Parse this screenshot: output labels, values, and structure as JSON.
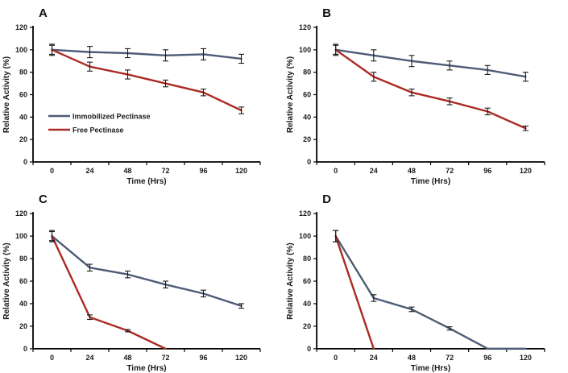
{
  "figure": {
    "background": "#ffffff",
    "axis_color": "#000000",
    "tick_label_color": "#1a1a1a",
    "error_bar_color": "#1a1a1a"
  },
  "legend": {
    "position": "inside-left-middle-of-panel-A",
    "items": [
      {
        "label": "Immobilized Pectinase",
        "color": "#4D5C76"
      },
      {
        "label": "Free Pectinase",
        "color": "#AA2B24"
      }
    ]
  },
  "chart_data": [
    {
      "type": "line",
      "panel_label": "A",
      "xlabel": "Time (Hrs)",
      "ylabel": "Relative Activity (%)",
      "categories": [
        "0",
        "24",
        "48",
        "72",
        "96",
        "120"
      ],
      "x": [
        0,
        24,
        48,
        72,
        96,
        120
      ],
      "ylim": [
        0,
        120
      ],
      "yticks": [
        0,
        20,
        40,
        60,
        80,
        100,
        120
      ],
      "grid": false,
      "show_legend": true,
      "series": [
        {
          "name": "Immobilized Pectinase",
          "color": "#4D5C76",
          "values": [
            100,
            98,
            97,
            95,
            96,
            92
          ],
          "errors": [
            5,
            5,
            4,
            5,
            5,
            4
          ]
        },
        {
          "name": "Free Pectinase",
          "color": "#AA2B24",
          "values": [
            100,
            85,
            78,
            70,
            62,
            46
          ],
          "errors": [
            4,
            4,
            4,
            3,
            3,
            3
          ]
        }
      ]
    },
    {
      "type": "line",
      "panel_label": "B",
      "xlabel": "Time (Hrs)",
      "ylabel": "Relative Activity (%)",
      "categories": [
        "0",
        "24",
        "48",
        "72",
        "96",
        "120"
      ],
      "x": [
        0,
        24,
        48,
        72,
        96,
        120
      ],
      "ylim": [
        0,
        120
      ],
      "yticks": [
        0,
        20,
        40,
        60,
        80,
        100,
        120
      ],
      "grid": false,
      "show_legend": false,
      "series": [
        {
          "name": "Immobilized Pectinase",
          "color": "#4D5C76",
          "values": [
            100,
            95,
            90,
            86,
            82,
            76
          ],
          "errors": [
            5,
            5,
            5,
            4,
            4,
            4
          ]
        },
        {
          "name": "Free Pectinase",
          "color": "#AA2B24",
          "values": [
            100,
            76,
            62,
            54,
            45,
            30
          ],
          "errors": [
            4,
            4,
            3,
            3,
            3,
            2
          ]
        }
      ]
    },
    {
      "type": "line",
      "panel_label": "C",
      "xlabel": "Time (Hrs)",
      "ylabel": "Relative Activity (%)",
      "categories": [
        "0",
        "24",
        "48",
        "72",
        "96",
        "120"
      ],
      "x": [
        0,
        24,
        48,
        72,
        96,
        120
      ],
      "ylim": [
        0,
        120
      ],
      "yticks": [
        0,
        20,
        40,
        60,
        80,
        100,
        120
      ],
      "grid": false,
      "show_legend": false,
      "series": [
        {
          "name": "Immobilized Pectinase",
          "color": "#4D5C76",
          "values": [
            100,
            72,
            66,
            57,
            49,
            38
          ],
          "errors": [
            5,
            3,
            3,
            3,
            3,
            2
          ]
        },
        {
          "name": "Free Pectinase",
          "color": "#AA2B24",
          "values": [
            100,
            28,
            16,
            0,
            null,
            null
          ],
          "errors": [
            4,
            2,
            1,
            0,
            null,
            null
          ]
        }
      ]
    },
    {
      "type": "line",
      "panel_label": "D",
      "xlabel": "Time (Hrs)",
      "ylabel": "Relative Activity (%)",
      "categories": [
        "0",
        "24",
        "48",
        "72",
        "96",
        "120"
      ],
      "x": [
        0,
        24,
        48,
        72,
        96,
        120
      ],
      "ylim": [
        0,
        120
      ],
      "yticks": [
        0,
        20,
        40,
        60,
        80,
        100,
        120
      ],
      "grid": false,
      "show_legend": false,
      "series": [
        {
          "name": "Immobilized Pectinase",
          "color": "#4D5C76",
          "values": [
            100,
            45,
            35,
            18,
            0,
            0
          ],
          "errors": [
            5,
            3,
            2,
            1.5,
            0,
            0
          ]
        },
        {
          "name": "Free Pectinase",
          "color": "#AA2B24",
          "values": [
            100,
            0,
            null,
            null,
            null,
            null
          ],
          "errors": [
            5,
            0,
            null,
            null,
            null,
            null
          ]
        }
      ]
    }
  ]
}
